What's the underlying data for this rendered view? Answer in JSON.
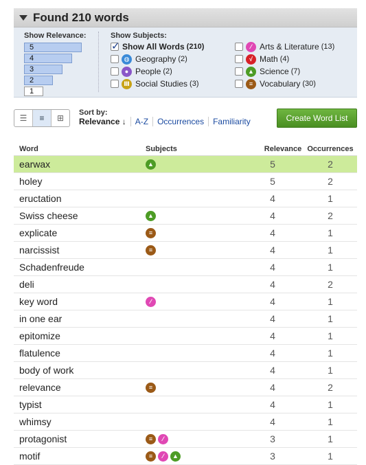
{
  "header": {
    "title": "Found 210 words"
  },
  "filters": {
    "relevance_label": "Show Relevance:",
    "relevance_levels": [
      "5",
      "4",
      "3",
      "2",
      "1"
    ],
    "subjects_label": "Show Subjects:",
    "subjects": [
      {
        "label": "Show All Words",
        "count": "(210)",
        "checked": true,
        "icon": ""
      },
      {
        "label": "Geography",
        "count": "(2)",
        "checked": false,
        "icon": "globe-icon"
      },
      {
        "label": "People",
        "count": "(2)",
        "checked": false,
        "icon": "person-icon"
      },
      {
        "label": "Social Studies",
        "count": "(3)",
        "checked": false,
        "icon": "columns-icon"
      },
      {
        "label": "Arts & Literature",
        "count": "(13)",
        "checked": false,
        "icon": "brush-icon"
      },
      {
        "label": "Math",
        "count": "(4)",
        "checked": false,
        "icon": "sqrt-icon"
      },
      {
        "label": "Science",
        "count": "(7)",
        "checked": false,
        "icon": "flask-icon"
      },
      {
        "label": "Vocabulary",
        "count": "(30)",
        "checked": false,
        "icon": "book-icon"
      }
    ]
  },
  "toolbar": {
    "sort_by_label": "Sort by:",
    "sort_options": [
      "Relevance ↓",
      "A-Z",
      "Occurrences",
      "Familiarity"
    ],
    "create_label": "Create Word List"
  },
  "table": {
    "headers": [
      "Word",
      "Subjects",
      "Relevance",
      "Occurrences"
    ],
    "rows": [
      {
        "word": "earwax",
        "subjects": [
          "science"
        ],
        "relevance": "5",
        "occurrences": "2"
      },
      {
        "word": "holey",
        "subjects": [],
        "relevance": "5",
        "occurrences": "2"
      },
      {
        "word": "eructation",
        "subjects": [],
        "relevance": "4",
        "occurrences": "1"
      },
      {
        "word": "Swiss cheese",
        "subjects": [
          "science"
        ],
        "relevance": "4",
        "occurrences": "2"
      },
      {
        "word": "explicate",
        "subjects": [
          "vocabulary"
        ],
        "relevance": "4",
        "occurrences": "1"
      },
      {
        "word": "narcissist",
        "subjects": [
          "vocabulary"
        ],
        "relevance": "4",
        "occurrences": "1"
      },
      {
        "word": "Schadenfreude",
        "subjects": [],
        "relevance": "4",
        "occurrences": "1"
      },
      {
        "word": "deli",
        "subjects": [],
        "relevance": "4",
        "occurrences": "2"
      },
      {
        "word": "key word",
        "subjects": [
          "arts"
        ],
        "relevance": "4",
        "occurrences": "1"
      },
      {
        "word": "in one ear",
        "subjects": [],
        "relevance": "4",
        "occurrences": "1"
      },
      {
        "word": "epitomize",
        "subjects": [],
        "relevance": "4",
        "occurrences": "1"
      },
      {
        "word": "flatulence",
        "subjects": [],
        "relevance": "4",
        "occurrences": "1"
      },
      {
        "word": "body of work",
        "subjects": [],
        "relevance": "4",
        "occurrences": "1"
      },
      {
        "word": "relevance",
        "subjects": [
          "vocabulary"
        ],
        "relevance": "4",
        "occurrences": "2"
      },
      {
        "word": "typist",
        "subjects": [],
        "relevance": "4",
        "occurrences": "1"
      },
      {
        "word": "whimsy",
        "subjects": [],
        "relevance": "4",
        "occurrences": "1"
      },
      {
        "word": "protagonist",
        "subjects": [
          "vocabulary",
          "arts"
        ],
        "relevance": "3",
        "occurrences": "1"
      },
      {
        "word": "motif",
        "subjects": [
          "vocabulary",
          "arts",
          "science"
        ],
        "relevance": "3",
        "occurrences": "1"
      }
    ]
  }
}
